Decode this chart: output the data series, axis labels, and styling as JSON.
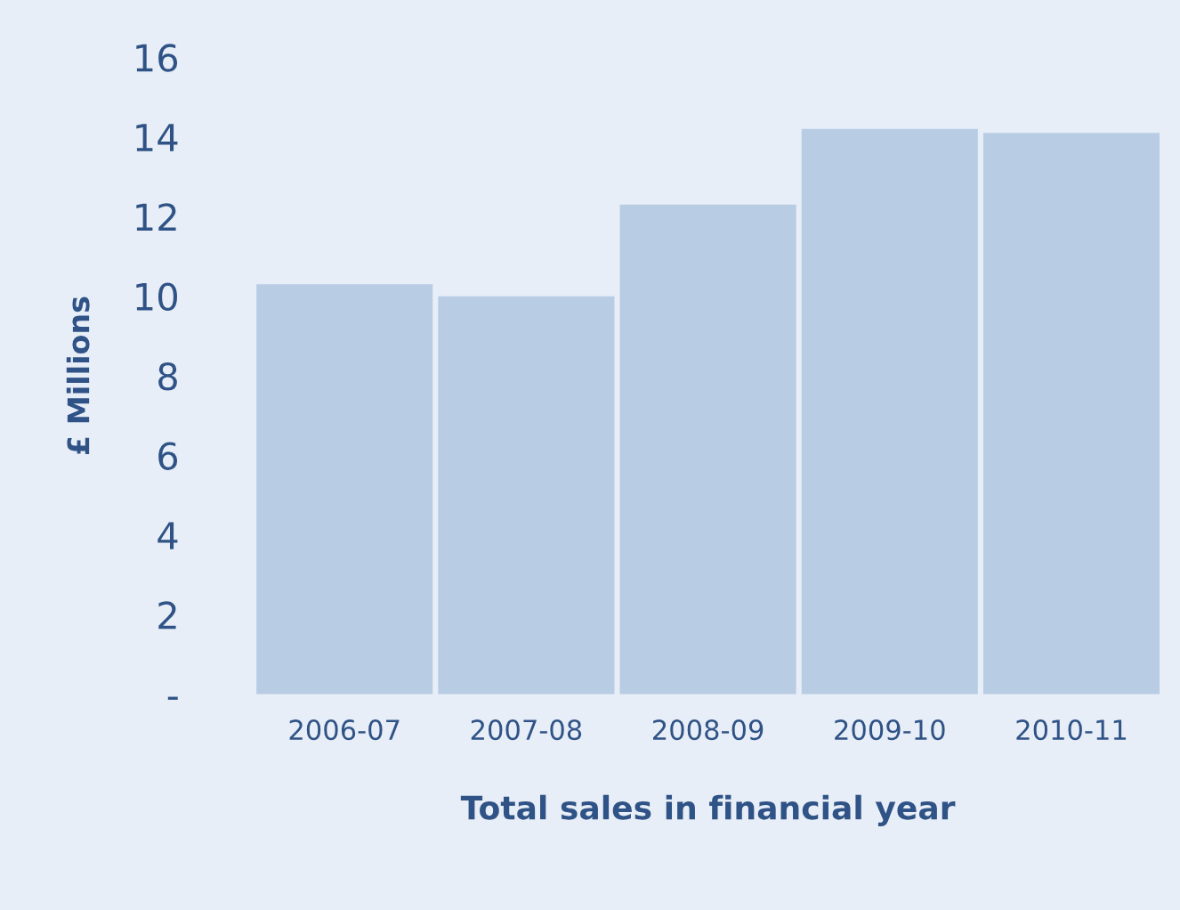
{
  "chart_data": {
    "type": "bar",
    "xlabel": "Total sales in financial year",
    "ylabel": "£ Millions",
    "categories": [
      "2006-07",
      "2007-08",
      "2008-09",
      "2009-10",
      "2010-11"
    ],
    "values": [
      10.3,
      10.0,
      12.3,
      14.2,
      14.1
    ],
    "color": "#b8cce4",
    "ylim": [
      0,
      16
    ],
    "yticks": [
      {
        "value": 0,
        "label": "-"
      },
      2,
      4,
      6,
      8,
      10,
      12,
      14,
      16
    ],
    "grid": false,
    "legend": false
  }
}
